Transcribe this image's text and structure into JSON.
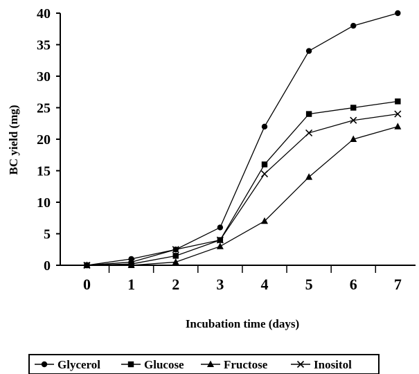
{
  "chart_data": {
    "type": "line",
    "xlabel": "Incubation time (days)",
    "ylabel": "BC yield (mg)",
    "x": [
      0,
      1,
      2,
      3,
      4,
      5,
      6,
      7
    ],
    "xlim": [
      -0.6,
      7.4
    ],
    "ylim": [
      0,
      40
    ],
    "yticks": [
      0,
      5,
      10,
      15,
      20,
      25,
      30,
      35,
      40
    ],
    "grid": false,
    "legend_position": "bottom",
    "series": [
      {
        "name": "Glycerol",
        "marker": "circle",
        "values": [
          0,
          1,
          2.5,
          6,
          22,
          34,
          38,
          40
        ]
      },
      {
        "name": "Glucose",
        "marker": "square",
        "values": [
          0,
          0.2,
          1.5,
          4,
          16,
          24,
          25,
          26
        ]
      },
      {
        "name": "Fructose",
        "marker": "triangle",
        "values": [
          0,
          0,
          0.5,
          3,
          7,
          14,
          20,
          22
        ]
      },
      {
        "name": "Inositol",
        "marker": "x",
        "values": [
          0,
          0.5,
          2.5,
          4,
          14.5,
          21,
          23,
          24
        ]
      }
    ]
  },
  "colors": {
    "line": "#000000",
    "background": "#ffffff"
  }
}
